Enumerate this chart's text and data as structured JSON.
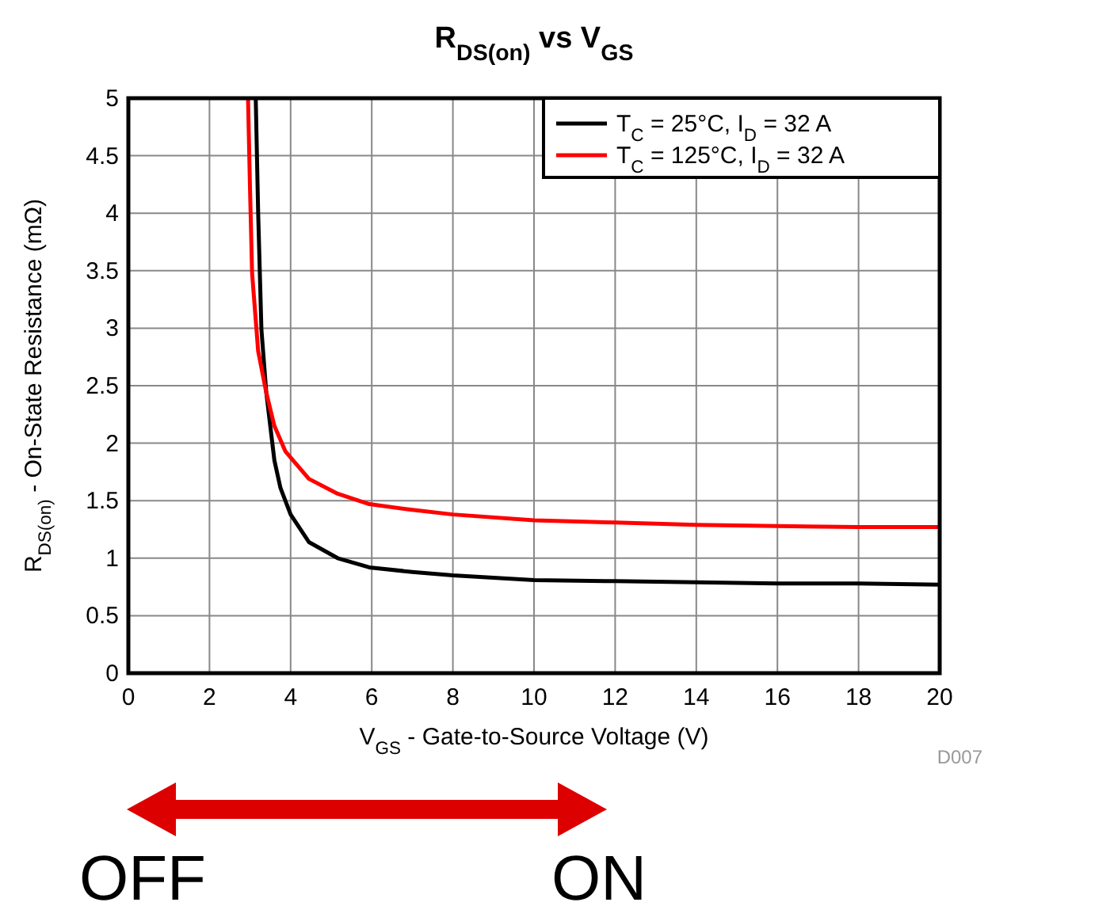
{
  "chart_data": {
    "type": "line",
    "title": "R$_{DS(on)}$ vs V$_{GS}$",
    "xlabel": "V$_{GS}$ - Gate-to-Source Voltage (V)",
    "ylabel": "R$_{DS(on)}$ - On-State Resistance (mΩ)",
    "xlim": [
      0,
      20
    ],
    "xticks": [
      0,
      2,
      4,
      6,
      8,
      10,
      12,
      14,
      16,
      18,
      20
    ],
    "ylim": [
      0,
      5
    ],
    "yticks": [
      0,
      0.5,
      1,
      1.5,
      2,
      2.5,
      3,
      3.5,
      4,
      4.5,
      5
    ],
    "grid": true,
    "legend": "top right",
    "marker": "none",
    "line_style": "solid",
    "series": [
      {
        "name": "T$_{C}$ = 25°C, I$_{D}$ = 32 A",
        "color": "#000000",
        "x": [
          3.14,
          3.2,
          3.28,
          3.4,
          3.6,
          3.75,
          4.0,
          4.45,
          5.16,
          5.94,
          7.0,
          8,
          10,
          12,
          14,
          16,
          18,
          20
        ],
        "values": [
          5,
          4,
          2.99,
          2.44,
          1.85,
          1.61,
          1.38,
          1.14,
          1.0,
          0.92,
          0.88,
          0.85,
          0.81,
          0.8,
          0.79,
          0.78,
          0.78,
          0.77
        ]
      },
      {
        "name": "T$_{C}$ = 125°C, I$_{D}$ = 32 A",
        "color": "#ff0000",
        "x": [
          2.95,
          3.0,
          3.05,
          3.2,
          3.4,
          3.6,
          3.87,
          4.45,
          5.16,
          5.94,
          7.0,
          8,
          10,
          12,
          14,
          16,
          18,
          20
        ],
        "values": [
          5,
          4.2,
          3.48,
          2.8,
          2.44,
          2.15,
          1.93,
          1.69,
          1.56,
          1.47,
          1.42,
          1.38,
          1.33,
          1.31,
          1.29,
          1.28,
          1.27,
          1.27
        ]
      }
    ],
    "annotations": [
      "D007",
      "OFF",
      "ON"
    ]
  }
}
